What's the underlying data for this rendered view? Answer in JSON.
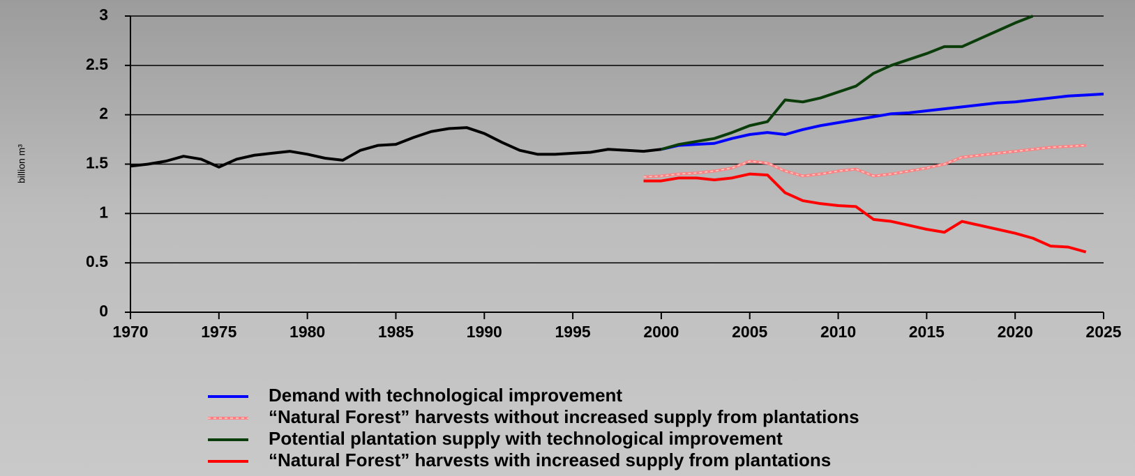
{
  "chart_data": {
    "type": "line",
    "y_label": "billion m³",
    "x": [
      1970,
      1971,
      1972,
      1973,
      1974,
      1975,
      1976,
      1977,
      1978,
      1979,
      1980,
      1981,
      1982,
      1983,
      1984,
      1985,
      1986,
      1987,
      1988,
      1989,
      1990,
      1991,
      1992,
      1993,
      1994,
      1995,
      1996,
      1997,
      1998,
      1999,
      2000,
      2001,
      2002,
      2003,
      2004,
      2005,
      2006,
      2007,
      2008,
      2009,
      2010,
      2011,
      2012,
      2013,
      2014,
      2015,
      2016,
      2017,
      2018,
      2019,
      2020,
      2021,
      2022,
      2023,
      2024,
      2025
    ],
    "xlim": [
      1970,
      2025
    ],
    "xticks": [
      1970,
      1975,
      1980,
      1985,
      1990,
      1995,
      2000,
      2005,
      2010,
      2015,
      2020,
      2025
    ],
    "ylim": [
      0,
      3
    ],
    "yticks": [
      0,
      0.5,
      1,
      1.5,
      2,
      2.5,
      3
    ],
    "grid": true,
    "series": [
      {
        "color": "#000000",
        "values": [
          1.48,
          1.5,
          1.53,
          1.58,
          1.55,
          1.47,
          1.55,
          1.59,
          1.61,
          1.63,
          1.6,
          1.56,
          1.54,
          1.64,
          1.69,
          1.7,
          1.77,
          1.83,
          1.86,
          1.87,
          1.81,
          1.72,
          1.64,
          1.6,
          1.6,
          1.61,
          1.62,
          1.65,
          1.64,
          1.63,
          1.65,
          null,
          null,
          null,
          null,
          null,
          null,
          null,
          null,
          null,
          null,
          null,
          null,
          null,
          null,
          null,
          null,
          null,
          null,
          null,
          null,
          null,
          null,
          null,
          null,
          null
        ]
      },
      {
        "name": "Demand with technological improvement",
        "color": "#0000ff",
        "values": [
          null,
          null,
          null,
          null,
          null,
          null,
          null,
          null,
          null,
          null,
          null,
          null,
          null,
          null,
          null,
          null,
          null,
          null,
          null,
          null,
          null,
          null,
          null,
          null,
          null,
          null,
          null,
          null,
          null,
          null,
          1.65,
          1.69,
          1.7,
          1.71,
          1.76,
          1.8,
          1.82,
          1.8,
          1.85,
          1.89,
          1.92,
          1.95,
          1.98,
          2.01,
          2.02,
          2.04,
          2.06,
          2.08,
          2.1,
          2.12,
          2.13,
          2.15,
          2.17,
          2.19,
          2.2,
          2.21
        ]
      },
      {
        "name": "“Natural Forest” harvests without increased supply from plantations",
        "color": "#ff8080",
        "style": "dashed",
        "values": [
          null,
          null,
          null,
          null,
          null,
          null,
          null,
          null,
          null,
          null,
          null,
          null,
          null,
          null,
          null,
          null,
          null,
          null,
          null,
          null,
          null,
          null,
          null,
          null,
          null,
          null,
          null,
          null,
          null,
          1.37,
          1.38,
          1.4,
          1.41,
          1.43,
          1.46,
          1.53,
          1.51,
          1.43,
          1.38,
          1.4,
          1.43,
          1.45,
          1.38,
          1.4,
          1.43,
          1.46,
          1.5,
          1.57,
          1.59,
          1.61,
          1.63,
          1.65,
          1.67,
          1.68,
          1.69,
          null
        ]
      },
      {
        "name": "Potential plantation supply with technological improvement",
        "color": "#0a3d0a",
        "values": [
          null,
          null,
          null,
          null,
          null,
          null,
          null,
          null,
          null,
          null,
          null,
          null,
          null,
          null,
          null,
          null,
          null,
          null,
          null,
          null,
          null,
          null,
          null,
          null,
          null,
          null,
          null,
          null,
          null,
          null,
          1.65,
          1.7,
          1.73,
          1.76,
          1.82,
          1.89,
          1.93,
          2.15,
          2.13,
          2.17,
          2.23,
          2.29,
          2.42,
          2.5,
          2.56,
          2.62,
          2.69,
          2.69,
          2.77,
          2.85,
          2.93,
          3.0,
          null,
          null,
          null,
          null
        ]
      },
      {
        "name": "“Natural Forest” harvests with increased supply from plantations",
        "color": "#ff0000",
        "values": [
          null,
          null,
          null,
          null,
          null,
          null,
          null,
          null,
          null,
          null,
          null,
          null,
          null,
          null,
          null,
          null,
          null,
          null,
          null,
          null,
          null,
          null,
          null,
          null,
          null,
          null,
          null,
          null,
          null,
          1.33,
          1.33,
          1.36,
          1.36,
          1.34,
          1.36,
          1.4,
          1.39,
          1.21,
          1.13,
          1.1,
          1.08,
          1.07,
          0.94,
          0.92,
          0.88,
          0.84,
          0.81,
          0.92,
          0.88,
          0.84,
          0.8,
          0.75,
          0.67,
          0.66,
          0.61,
          null
        ]
      }
    ]
  }
}
